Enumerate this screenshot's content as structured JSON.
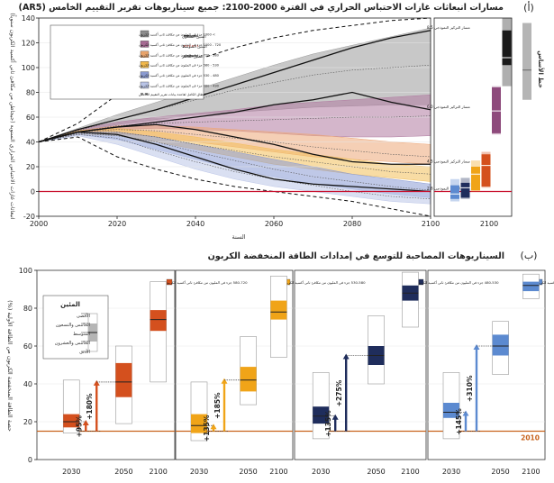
{
  "panel_a": {
    "letter": "(أ)",
    "title": "مسارات انبعاثات غازات الاحتباس الحراري في الفترة 2000-2100: جميع سيناريوهات تقرير التقييم الخامس (AR5)",
    "ylabel": "انبعاثات غازات الاحتباس الحراري السنوية (جيجاطن من مكافئ ثاني أكسيد الكربون سنوياً)",
    "xlabel": "السنة",
    "x_ticks": [
      "2000",
      "2020",
      "2040",
      "2060",
      "2080",
      "2100"
    ],
    "y_ticks": [
      "-20",
      "0",
      "20",
      "40",
      "60",
      "80",
      "100",
      "120",
      "140"
    ],
    "right_xtick": "2100",
    "baseline_label": "خط الأساس",
    "legend_categories": [
      {
        "label": "> 1000 جزء في المليون من مكافئ ثاني أكسيد الكربون",
        "color": "#8c8c8c"
      },
      {
        "label": "720 - 1000 جزء في المليون من مكافئ ثاني أكسيد الكربون",
        "color": "#a66a93"
      },
      {
        "label": "580 - 720 جزء في المليون من مكافئ ثاني أكسيد الكربون",
        "color": "#e8a36a"
      },
      {
        "label": "530 - 580 جزء في المليون من مكافئ ثاني أكسيد الكربون",
        "color": "#f2b84a"
      },
      {
        "label": "480 - 530 جزء في المليون من مكافئ ثاني أكسيد الكربون",
        "color": "#8a9ad0"
      },
      {
        "label": "430 - 480 جزء في المليون من مكافئ ثاني أكسيد الكربون",
        "color": "#b9c4e6"
      }
    ],
    "legend_full_range": "النطاق الكامل لقاعدة بيانات تقرير التقييم الخامس",
    "legend_lines": [
      {
        "label": "المئين التسعون",
        "style": "solid"
      },
      {
        "label": "المئين المتوسط",
        "style": "dotted"
      },
      {
        "label": "المئين العاشر",
        "style": "solid"
      }
    ],
    "rcp_labels": [
      "مسار التركيز النموذجي 8.5",
      "مسار التركيز النموذجي 6.0",
      "مسار التركيز النموذجي 4.5",
      "مسار التركيز النموذجي 2.6"
    ]
  },
  "panel_b": {
    "letter": "(ب)",
    "title": "السيناريوهات المصاحبة للتوسع في إمدادات الطاقة المنخفضة الكربون",
    "ylabel": "حصة الطاقة المنخفضة الكربون من الطاقة الأولية (%)",
    "y_ticks": [
      "0",
      "20",
      "40",
      "60",
      "80",
      "100"
    ],
    "x_ticks": [
      "2030",
      "2050",
      "2100"
    ],
    "year_2010": "2010",
    "percentile_legend": {
      "title": "المئين",
      "items": [
        "الأقصى",
        "الخامس والتسعون",
        "المتوسط",
        "الخامس والعشرون",
        "الأدنى"
      ]
    },
    "subpanels": [
      {
        "label": "580-720 جزء في المليون من مكافئ ثاني أكسيد الكربون",
        "color": "#d4501e",
        "arrow_2030": "+95%",
        "arrow_2050": "+180%"
      },
      {
        "label": "530-580 جزء في المليون من مكافئ ثاني أكسيد الكربون",
        "color": "#f0a418",
        "arrow_2030": "+135%",
        "arrow_2050": "+185%"
      },
      {
        "label": "480-530 جزء في المليون من مكافئ ثاني أكسيد الكربون",
        "color": "#1f2d5c",
        "arrow_2030": "+135%",
        "arrow_2050": "+275%"
      },
      {
        "label": "430-480 جزء في المليون من مكافئ ثاني أكسيد الكربون",
        "color": "#5c8ad0",
        "arrow_2030": "+145%",
        "arrow_2050": "+310%"
      }
    ]
  },
  "chart_data": [
    {
      "type": "area",
      "title": "مسارات انبعاثات غازات الاحتباس الحراري في الفترة 2000-2100: جميع سيناريوهات تقرير التقييم الخامس (AR5)",
      "xlabel": "السنة",
      "ylabel": "انبعاثات غازات الاحتباس الحراري السنوية (جيجاطن من مكافئ ثاني أكسيد الكربون سنوياً)",
      "xlim": [
        2000,
        2100
      ],
      "ylim": [
        -20,
        140
      ],
      "x": [
        2000,
        2010,
        2020,
        2030,
        2040,
        2050,
        2060,
        2070,
        2080,
        2090,
        2100
      ],
      "series": [
        {
          "name": ">1000",
          "color": "#9a9a9a",
          "low": [
            40,
            48,
            54,
            58,
            62,
            64,
            66,
            68,
            69,
            70,
            70
          ],
          "high": [
            40,
            51,
            62,
            72,
            82,
            92,
            102,
            111,
            118,
            125,
            132
          ],
          "median": [
            40,
            49,
            58,
            66,
            74,
            82,
            88,
            94,
            98,
            100,
            102
          ]
        },
        {
          "name": "720-1000",
          "color": "#b07aa0",
          "low": [
            40,
            47,
            50,
            51,
            50,
            49,
            47,
            45,
            44,
            44,
            45
          ],
          "high": [
            40,
            50,
            56,
            60,
            63,
            66,
            70,
            72,
            74,
            76,
            78
          ],
          "median": [
            40,
            48,
            53,
            55,
            56,
            57,
            58,
            59,
            60,
            60,
            61
          ]
        },
        {
          "name": "580-720",
          "color": "#eda779",
          "low": [
            40,
            47,
            47,
            44,
            40,
            36,
            32,
            28,
            26,
            24,
            22
          ],
          "high": [
            40,
            49,
            53,
            53,
            52,
            50,
            48,
            46,
            43,
            40,
            38
          ],
          "median": [
            40,
            48,
            50,
            49,
            46,
            43,
            40,
            36,
            33,
            30,
            28
          ]
        },
        {
          "name": "530-580",
          "color": "#f3bf5a",
          "low": [
            40,
            46,
            45,
            40,
            34,
            28,
            22,
            18,
            14,
            11,
            8
          ],
          "high": [
            40,
            49,
            51,
            48,
            44,
            39,
            34,
            30,
            26,
            22,
            20
          ],
          "median": [
            40,
            47,
            48,
            44,
            38,
            33,
            28,
            24,
            20,
            16,
            14
          ]
        },
        {
          "name": "480-530",
          "color": "#8b9bd3",
          "low": [
            40,
            46,
            42,
            34,
            26,
            18,
            12,
            6,
            2,
            -2,
            -5
          ],
          "high": [
            40,
            48,
            48,
            44,
            38,
            32,
            26,
            20,
            14,
            10,
            6
          ],
          "median": [
            40,
            47,
            45,
            40,
            32,
            25,
            18,
            12,
            8,
            4,
            1
          ]
        },
        {
          "name": "430-480",
          "color": "#bcc6e8",
          "low": [
            40,
            45,
            38,
            28,
            18,
            10,
            4,
            0,
            -4,
            -8,
            -10
          ],
          "high": [
            40,
            48,
            46,
            38,
            30,
            22,
            16,
            10,
            6,
            2,
            -2
          ],
          "median": [
            40,
            46,
            43,
            33,
            24,
            16,
            10,
            5,
            0,
            -4,
            -6
          ]
        }
      ],
      "full_range_low": [
        40,
        44,
        28,
        18,
        10,
        4,
        0,
        -4,
        -8,
        -14,
        -20
      ],
      "full_range_high": [
        40,
        55,
        78,
        92,
        106,
        116,
        124,
        130,
        134,
        138,
        140
      ],
      "rcp": [
        {
          "name": "8.5",
          "values": [
            40,
            50,
            58,
            66,
            76,
            86,
            96,
            106,
            116,
            124,
            130
          ]
        },
        {
          "name": "6.0",
          "values": [
            40,
            48,
            52,
            56,
            60,
            64,
            70,
            74,
            80,
            72,
            66
          ]
        },
        {
          "name": "4.5",
          "values": [
            40,
            48,
            52,
            54,
            50,
            44,
            38,
            30,
            24,
            22,
            22
          ]
        },
        {
          "name": "2.6",
          "values": [
            40,
            48,
            46,
            38,
            28,
            18,
            10,
            6,
            4,
            2,
            0
          ]
        }
      ],
      "baseline_2100_range": [
        74,
        136
      ],
      "baseline_2100_median": 98,
      "boxes_2100": [
        {
          "name": ">1000",
          "color": "#1a1a1a",
          "min": 85,
          "max": 140,
          "q1": 102,
          "median": 108,
          "q3": 130
        },
        {
          "name": "720-1000",
          "color": "#8e4a7c",
          "min": 46,
          "max": 85,
          "q1": 47,
          "median": 65,
          "q3": 84
        },
        {
          "name": "580-720",
          "color": "#d4501e",
          "min": 3,
          "max": 32,
          "q1": 4,
          "median": 21,
          "q3": 30
        },
        {
          "name": "530-580",
          "color": "#f0a418",
          "min": 0,
          "max": 25,
          "q1": 1,
          "median": 14,
          "q3": 20
        },
        {
          "name": "480-530",
          "color": "#1f2d5c",
          "min": -6,
          "max": 11,
          "q1": -5,
          "median": 3,
          "q3": 7
        },
        {
          "name": "430-480",
          "color": "#5c8ad0",
          "min": -8,
          "max": 10,
          "q1": -6,
          "median": -2,
          "q3": 5
        }
      ]
    },
    {
      "type": "bar",
      "title": "السيناريوهات المصاحبة للتوسع في إمدادات الطاقة المنخفضة الكربون",
      "ylabel": "حصة الطاقة المنخفضة الكربون من الطاقة الأولية (%)",
      "ylim": [
        0,
        100
      ],
      "categories": [
        "2030",
        "2050",
        "2100"
      ],
      "value_2010": 15,
      "series": [
        {
          "name": "580-720",
          "boxes": [
            {
              "min": 14,
              "q1": 17,
              "median": 20,
              "q3": 24,
              "max": 42
            },
            {
              "min": 19,
              "q1": 33,
              "median": 41,
              "q3": 51,
              "max": 60
            },
            {
              "min": 41,
              "q1": 68,
              "median": 74,
              "q3": 79,
              "max": 94
            }
          ],
          "arrows": [
            "+95%",
            "+180%"
          ]
        },
        {
          "name": "530-580",
          "boxes": [
            {
              "min": 10,
              "q1": 14,
              "median": 18,
              "q3": 24,
              "max": 41
            },
            {
              "min": 29,
              "q1": 36,
              "median": 42,
              "q3": 49,
              "max": 65
            },
            {
              "min": 54,
              "q1": 74,
              "median": 78,
              "q3": 84,
              "max": 97
            }
          ],
          "arrows": [
            "+135%",
            "+185%"
          ]
        },
        {
          "name": "480-530",
          "boxes": [
            {
              "min": 11,
              "q1": 19,
              "median": 23,
              "q3": 28,
              "max": 46
            },
            {
              "min": 40,
              "q1": 50,
              "median": 55,
              "q3": 60,
              "max": 76
            },
            {
              "min": 70,
              "q1": 84,
              "median": 88,
              "q3": 92,
              "max": 99
            }
          ],
          "arrows": [
            "+135%",
            "+275%"
          ]
        },
        {
          "name": "430-480",
          "boxes": [
            {
              "min": 11,
              "q1": 22,
              "median": 25,
              "q3": 30,
              "max": 46
            },
            {
              "min": 45,
              "q1": 55,
              "median": 60,
              "q3": 66,
              "max": 73
            },
            {
              "min": 85,
              "q1": 89,
              "median": 92,
              "q3": 94,
              "max": 98
            }
          ],
          "arrows": [
            "+145%",
            "+310%"
          ]
        }
      ]
    }
  ]
}
